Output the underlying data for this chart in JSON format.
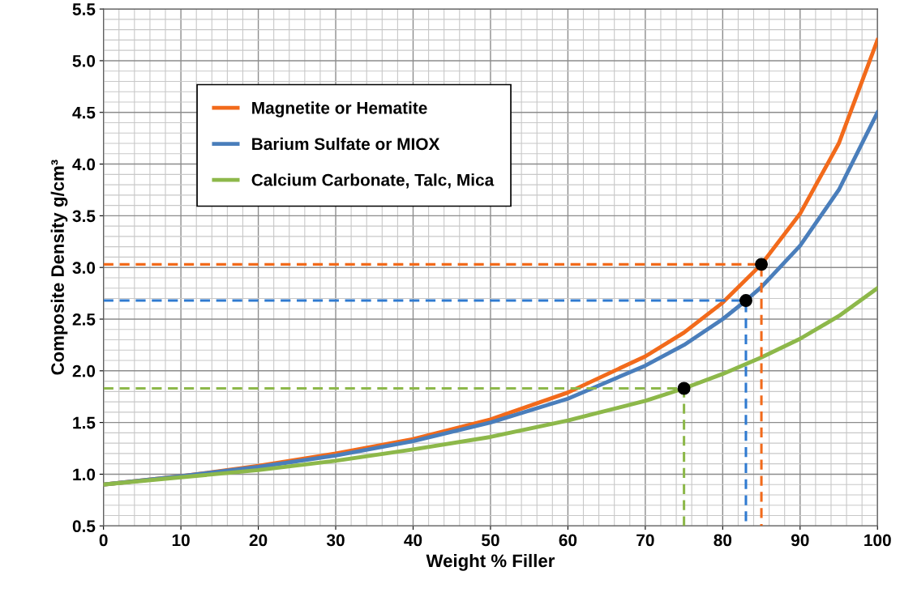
{
  "chart_data": {
    "type": "line",
    "xlabel": "Weight % Filler",
    "ylabel": "Composite Density g/cm³",
    "xlim": [
      0,
      100
    ],
    "ylim": [
      0.5,
      5.5
    ],
    "xticks": [
      0,
      10,
      20,
      30,
      40,
      50,
      60,
      70,
      80,
      90,
      100
    ],
    "yticks": [
      0.5,
      {
        "value": 1,
        "label": "1.0"
      },
      1.5,
      {
        "value": 2,
        "label": "2.0"
      },
      2.5,
      {
        "value": 3,
        "label": "3.0"
      },
      3.5,
      {
        "value": 4,
        "label": "4.0"
      },
      4.5,
      {
        "value": 5,
        "label": "5.0"
      },
      5.5
    ],
    "grid": true,
    "legend": "top left",
    "line_style": "solid",
    "marker": "none",
    "series": [
      {
        "name": "Magnetite or Hematite",
        "color": "#f26a1b",
        "x": [
          0,
          10,
          20,
          30,
          40,
          50,
          60,
          70,
          75,
          80,
          85,
          90,
          95,
          100
        ],
        "values": [
          0.9,
          0.98,
          1.08,
          1.2,
          1.34,
          1.53,
          1.79,
          2.14,
          2.37,
          2.66,
          3.03,
          3.52,
          4.2,
          5.2
        ]
      },
      {
        "name": "Barium Sulfate or MIOX",
        "color": "#4a7ebb",
        "x": [
          0,
          10,
          20,
          30,
          40,
          50,
          60,
          70,
          75,
          80,
          83,
          85,
          90,
          95,
          100
        ],
        "values": [
          0.9,
          0.98,
          1.07,
          1.18,
          1.32,
          1.5,
          1.73,
          2.05,
          2.25,
          2.5,
          2.68,
          2.81,
          3.21,
          3.75,
          4.5
        ]
      },
      {
        "name": "Calcium Carbonate, Talc, Mica",
        "color": "#8db84a",
        "x": [
          0,
          10,
          20,
          30,
          40,
          50,
          60,
          70,
          75,
          80,
          85,
          90,
          95,
          100
        ],
        "values": [
          0.9,
          0.97,
          1.04,
          1.13,
          1.24,
          1.36,
          1.52,
          1.71,
          1.83,
          1.97,
          2.13,
          2.31,
          2.53,
          2.8
        ]
      },
      {
        "color": "#f26a1b",
        "line_style": "dashed",
        "x": [
          0,
          85,
          85
        ],
        "values": [
          3.03,
          3.03,
          0.5
        ]
      },
      {
        "color": "#2f7ad0",
        "line_style": "dashed",
        "x": [
          0,
          83,
          83
        ],
        "values": [
          2.68,
          2.68,
          0.5
        ]
      },
      {
        "color": "#8db84a",
        "line_style": "dashed",
        "x": [
          0,
          75,
          75
        ],
        "values": [
          1.83,
          1.83,
          0.5
        ]
      },
      {
        "type": "scatter",
        "color": "#000000",
        "marker": "circle",
        "x": [
          85,
          83,
          75
        ],
        "values": [
          3.03,
          2.68,
          1.83
        ]
      }
    ]
  }
}
